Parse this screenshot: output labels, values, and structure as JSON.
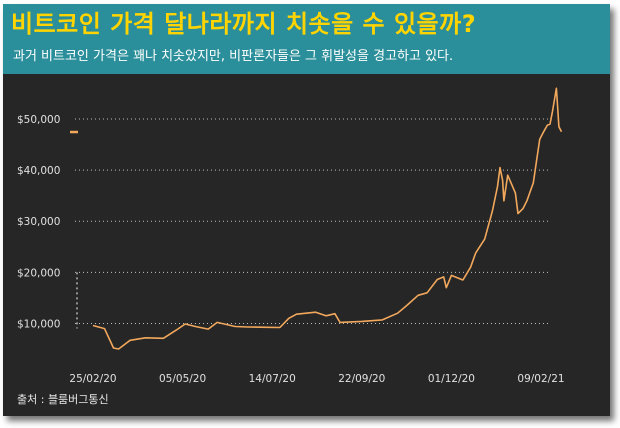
{
  "header": {
    "title": "비트코인 가격 달나라까지 치솟을 수 있을까?",
    "subtitle": "과거 비트코인 가격은 꽤나 치솟았지만, 비판론자들은 그 휘발성을 경고하고 있다."
  },
  "source": "출처 : 블룸버그통신",
  "colors": {
    "header_bg": "#2a8f9a",
    "title": "#ffd400",
    "plot_bg": "#262626",
    "line": "#f2a85c",
    "grid": "#bfbfbf"
  },
  "chart_data": {
    "type": "line",
    "title": "",
    "xlabel": "",
    "ylabel": "",
    "ylim": [
      0,
      56000
    ],
    "yticks": [
      {
        "value": 10000,
        "label": "$10,000"
      },
      {
        "value": 20000,
        "label": "$20,000"
      },
      {
        "value": 30000,
        "label": "$30,000"
      },
      {
        "value": 40000,
        "label": "$40,000"
      },
      {
        "value": 50000,
        "label": "$50,000"
      }
    ],
    "xticks": [
      {
        "date": "2020-02-25",
        "label": "25/02/20"
      },
      {
        "date": "2020-05-05",
        "label": "05/05/20"
      },
      {
        "date": "2020-07-14",
        "label": "14/07/20"
      },
      {
        "date": "2020-09-22",
        "label": "22/09/20"
      },
      {
        "date": "2020-12-01",
        "label": "01/12/20"
      },
      {
        "date": "2021-02-09",
        "label": "09/02/21"
      }
    ],
    "grid": "horizontal dotted",
    "series": [
      {
        "points": [
          [
            "2020-02-25",
            9600
          ],
          [
            "2020-03-05",
            9000
          ],
          [
            "2020-03-12",
            5200
          ],
          [
            "2020-03-16",
            5000
          ],
          [
            "2020-03-25",
            6700
          ],
          [
            "2020-04-06",
            7200
          ],
          [
            "2020-04-20",
            7100
          ],
          [
            "2020-04-30",
            8700
          ],
          [
            "2020-05-07",
            9900
          ],
          [
            "2020-05-15",
            9400
          ],
          [
            "2020-05-25",
            8900
          ],
          [
            "2020-06-01",
            10200
          ],
          [
            "2020-06-15",
            9400
          ],
          [
            "2020-06-25",
            9300
          ],
          [
            "2020-07-10",
            9250
          ],
          [
            "2020-07-20",
            9200
          ],
          [
            "2020-07-27",
            11000
          ],
          [
            "2020-08-02",
            11800
          ],
          [
            "2020-08-17",
            12200
          ],
          [
            "2020-08-25",
            11500
          ],
          [
            "2020-09-01",
            11900
          ],
          [
            "2020-09-05",
            10200
          ],
          [
            "2020-09-22",
            10400
          ],
          [
            "2020-10-08",
            10700
          ],
          [
            "2020-10-20",
            12000
          ],
          [
            "2020-10-27",
            13500
          ],
          [
            "2020-11-05",
            15500
          ],
          [
            "2020-11-12",
            16000
          ],
          [
            "2020-11-20",
            18600
          ],
          [
            "2020-11-25",
            19100
          ],
          [
            "2020-11-27",
            17000
          ],
          [
            "2020-12-01",
            19400
          ],
          [
            "2020-12-10",
            18500
          ],
          [
            "2020-12-16",
            21000
          ],
          [
            "2020-12-20",
            23800
          ],
          [
            "2020-12-27",
            26500
          ],
          [
            "2021-01-02",
            32000
          ],
          [
            "2021-01-06",
            36800
          ],
          [
            "2021-01-08",
            40500
          ],
          [
            "2021-01-10",
            38000
          ],
          [
            "2021-01-11",
            34000
          ],
          [
            "2021-01-14",
            39000
          ],
          [
            "2021-01-20",
            35500
          ],
          [
            "2021-01-22",
            31500
          ],
          [
            "2021-01-26",
            32500
          ],
          [
            "2021-01-29",
            34000
          ],
          [
            "2021-02-03",
            37500
          ],
          [
            "2021-02-08",
            46000
          ],
          [
            "2021-02-11",
            47500
          ],
          [
            "2021-02-14",
            48800
          ],
          [
            "2021-02-16",
            49000
          ],
          [
            "2021-02-18",
            51500
          ],
          [
            "2021-02-21",
            56000
          ],
          [
            "2021-02-23",
            48500
          ],
          [
            "2021-02-25",
            47500
          ]
        ]
      }
    ],
    "markers": [
      {
        "type": "start-level",
        "value": 47500
      }
    ]
  }
}
